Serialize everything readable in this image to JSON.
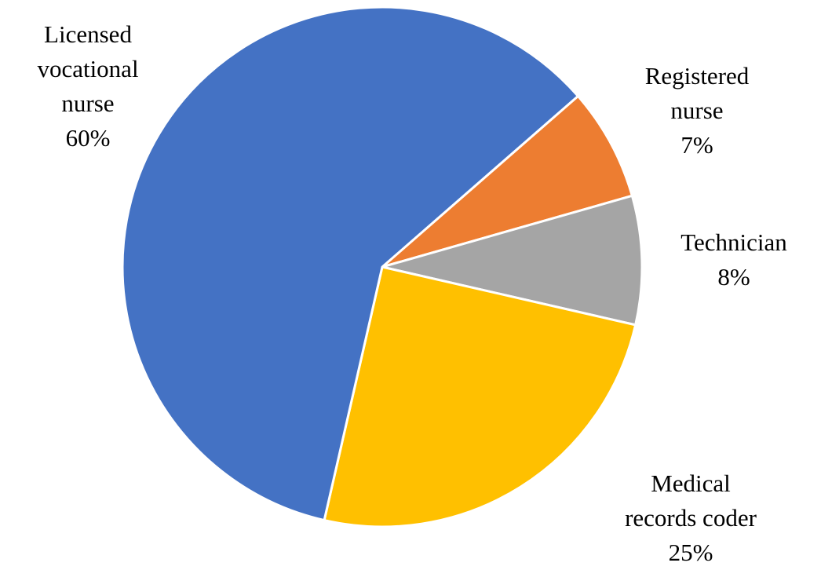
{
  "chart_data": {
    "type": "pie",
    "categories": [
      "Registered nurse",
      "Technician",
      "Medical records coder",
      "Licensed vocational nurse"
    ],
    "values": [
      7,
      8,
      25,
      60
    ],
    "value_labels": [
      "7%",
      "8%",
      "25%",
      "60%"
    ],
    "colors": [
      "#ed7d31",
      "#a5a5a5",
      "#ffc000",
      "#4472c4"
    ]
  }
}
